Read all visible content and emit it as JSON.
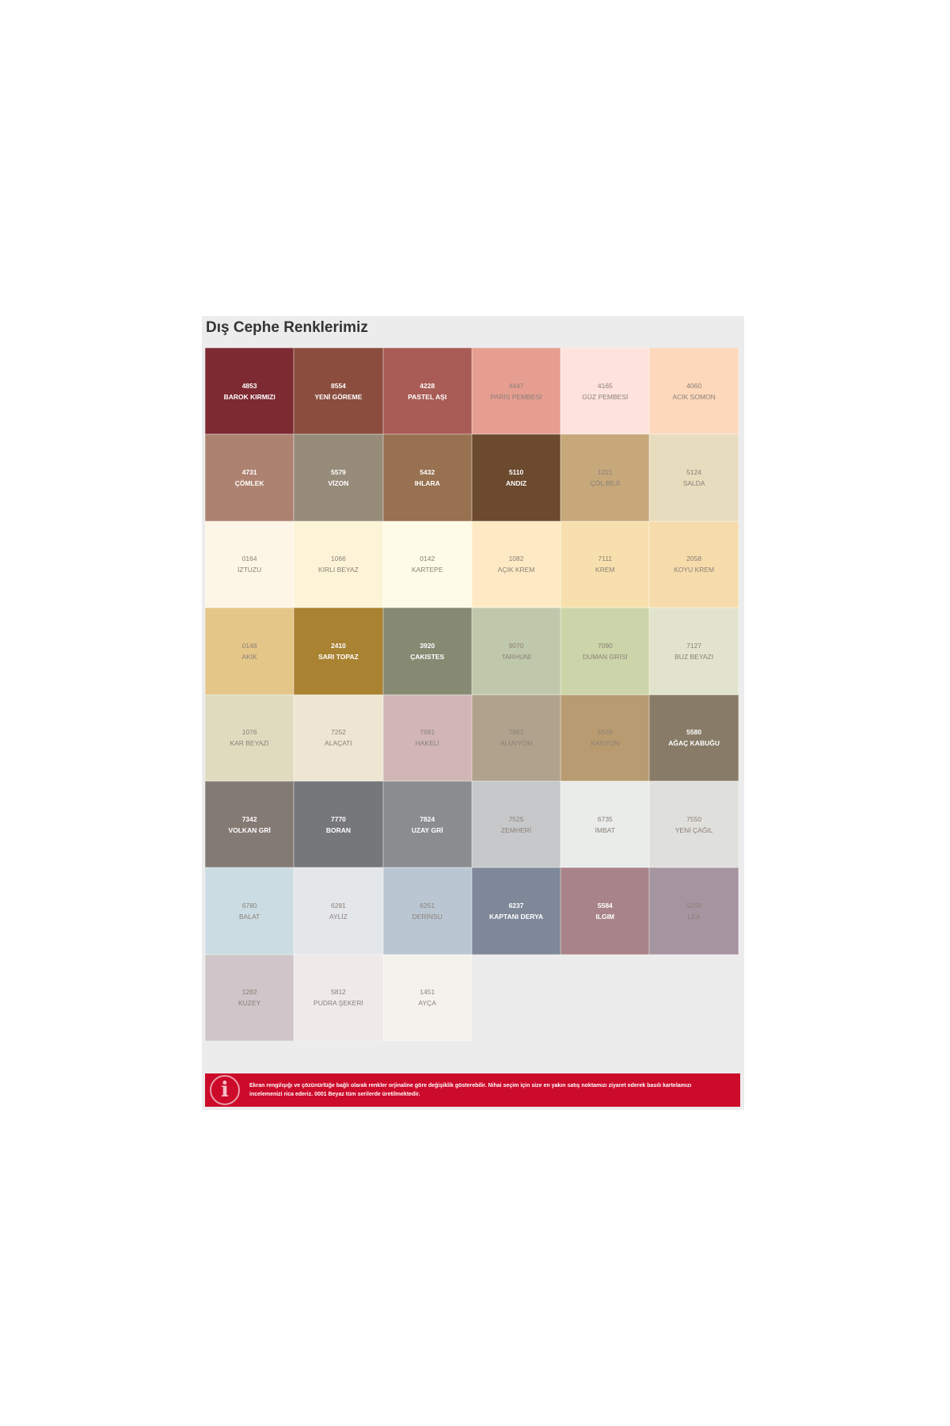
{
  "title": "Dış Cephe Renklerimiz",
  "colors": [
    {
      "code": "4853",
      "name": "BAROK KIRMIZI",
      "hex": "#7d2a32",
      "dark": true
    },
    {
      "code": "8554",
      "name": "YENİ GÖREME",
      "hex": "#8b4d3e",
      "dark": true
    },
    {
      "code": "4228",
      "name": "PASTEL AŞI",
      "hex": "#a85c55",
      "dark": true
    },
    {
      "code": "4447",
      "name": "PARİS PEMBESİ",
      "hex": "#e69e91",
      "dark": false
    },
    {
      "code": "4165",
      "name": "GÜZ PEMBESİ",
      "hex": "#fde3db",
      "dark": false
    },
    {
      "code": "4060",
      "name": "ACIK SOMON",
      "hex": "#fdd8bb",
      "dark": false
    },
    {
      "code": "4731",
      "name": "ÇÖMLEK",
      "hex": "#ae8270",
      "dark": true
    },
    {
      "code": "5579",
      "name": "VİZON",
      "hex": "#978b7a",
      "dark": true
    },
    {
      "code": "5432",
      "name": "IHLARA",
      "hex": "#977150",
      "dark": true
    },
    {
      "code": "5110",
      "name": "ANDIZ",
      "hex": "#6c4a2e",
      "dark": true
    },
    {
      "code": "1221",
      "name": "ÇÖL BEJİ",
      "hex": "#c6a87b",
      "dark": false
    },
    {
      "code": "5124",
      "name": "SALDA",
      "hex": "#e7dcbd",
      "dark": false
    },
    {
      "code": "0164",
      "name": "İZTUZU",
      "hex": "#fdf5e6",
      "dark": false
    },
    {
      "code": "1066",
      "name": "KIRLI BEYAZ",
      "hex": "#fdf4d8",
      "dark": false
    },
    {
      "code": "0142",
      "name": "KARTEPE",
      "hex": "#fefbe6",
      "dark": false
    },
    {
      "code": "1082",
      "name": "AÇIK KREM",
      "hex": "#fdeac4",
      "dark": false
    },
    {
      "code": "7111",
      "name": "KREM",
      "hex": "#f7e0ad",
      "dark": false
    },
    {
      "code": "2058",
      "name": "KOYU KREM",
      "hex": "#f6dbab",
      "dark": false
    },
    {
      "code": "0148",
      "name": "AKİK",
      "hex": "#e5c689",
      "dark": false
    },
    {
      "code": "2410",
      "name": "SARI TOPAZ",
      "hex": "#a98232",
      "dark": true
    },
    {
      "code": "3920",
      "name": "ÇAKISTES",
      "hex": "#868a72",
      "dark": true
    },
    {
      "code": "9070",
      "name": "TARHUNİ",
      "hex": "#c0c8ab",
      "dark": false
    },
    {
      "code": "7090",
      "name": "DUMAN GRİSİ",
      "hex": "#ccd5a9",
      "dark": false
    },
    {
      "code": "7127",
      "name": "BUZ BEYAZI",
      "hex": "#e2e3cc",
      "dark": false
    },
    {
      "code": "1076",
      "name": "KAR BEYAZI",
      "hex": "#e0dbbf",
      "dark": false
    },
    {
      "code": "7252",
      "name": "ALAÇATI",
      "hex": "#eee5d3",
      "dark": false
    },
    {
      "code": "7681",
      "name": "HAKELİ",
      "hex": "#d1b6b5",
      "dark": false
    },
    {
      "code": "7962",
      "name": "ALUVYON",
      "hex": "#b0a28c",
      "dark": false
    },
    {
      "code": "5576",
      "name": "KANYON",
      "hex": "#b99b71",
      "dark": false
    },
    {
      "code": "5580",
      "name": "AĞAÇ KABUĞU",
      "hex": "#887c68",
      "dark": true
    },
    {
      "code": "7342",
      "name": "VOLKAN GRİ",
      "hex": "#847a74",
      "dark": true
    },
    {
      "code": "7770",
      "name": "BORAN",
      "hex": "#76777a",
      "dark": true
    },
    {
      "code": "7824",
      "name": "UZAY GRİ",
      "hex": "#8a8c90",
      "dark": true
    },
    {
      "code": "7525",
      "name": "ZEMHERİ",
      "hex": "#c7c8ca",
      "dark": false
    },
    {
      "code": "6735",
      "name": "İMBAT",
      "hex": "#eaecea",
      "dark": false
    },
    {
      "code": "7550",
      "name": "YENİ ÇAĞIL",
      "hex": "#dfdfdc",
      "dark": false
    },
    {
      "code": "6780",
      "name": "BALAT",
      "hex": "#cbdce3",
      "dark": false
    },
    {
      "code": "6281",
      "name": "AYLİZ",
      "hex": "#e4e7ea",
      "dark": false
    },
    {
      "code": "6251",
      "name": "DERİNSU",
      "hex": "#bac7d3",
      "dark": false
    },
    {
      "code": "6237",
      "name": "KAPTANI DERYA",
      "hex": "#7e8899",
      "dark": true
    },
    {
      "code": "5584",
      "name": "ILGIM",
      "hex": "#a88389",
      "dark": true
    },
    {
      "code": "5259",
      "name": "LEA",
      "hex": "#a595a0",
      "dark": false
    },
    {
      "code": "1282",
      "name": "KUZEY",
      "hex": "#d0c5c8",
      "dark": false
    },
    {
      "code": "5812",
      "name": "PUDRA ŞEKERİ",
      "hex": "#efe9e9",
      "dark": false
    },
    {
      "code": "1451",
      "name": "AYÇA",
      "hex": "#f5f2ee",
      "dark": false
    }
  ],
  "notice": {
    "icon": "info-icon",
    "text": "Ekran rengi/ışığı ve çözünürlüğe bağlı olarak renkler orjinaline göre değişiklik gösterebilir. Nihai seçim için size en yakın satış noktamızı ziyaret ederek basılı kartelamızı incelemenizi rica ederiz. 0001 Beyaz tüm serilerde üretilmektedir.",
    "color": "#cc0a2a"
  }
}
